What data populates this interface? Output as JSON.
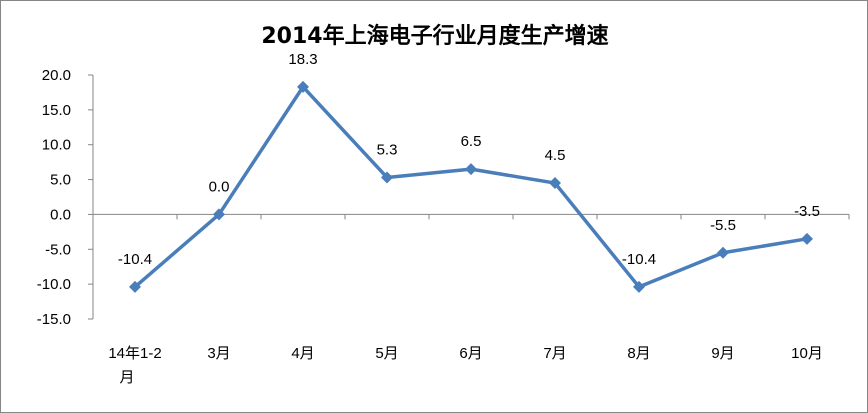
{
  "chart_data": {
    "type": "line",
    "title": "2014年上海电子行业月度生产增速",
    "categories": [
      "14年1-2月",
      "3月",
      "4月",
      "5月",
      "6月",
      "7月",
      "8月",
      "9月",
      "10月"
    ],
    "series": [
      {
        "values": [
          -10.4,
          0.0,
          18.3,
          5.3,
          6.5,
          4.5,
          -10.4,
          -5.5,
          -3.5
        ]
      }
    ],
    "data_labels": [
      "-10.4",
      "0.0",
      "18.3",
      "5.3",
      "6.5",
      "4.5",
      "-10.4",
      "-5.5",
      "-3.5"
    ],
    "ylim": [
      -15,
      20
    ],
    "ytick_labels": [
      "20.0",
      "15.0",
      "10.0",
      "5.0",
      "0.0",
      "-5.0",
      "-10.0",
      "-15.0"
    ],
    "grid": false,
    "colors": {
      "line": "#4a7ebb",
      "axis": "#868686"
    }
  }
}
